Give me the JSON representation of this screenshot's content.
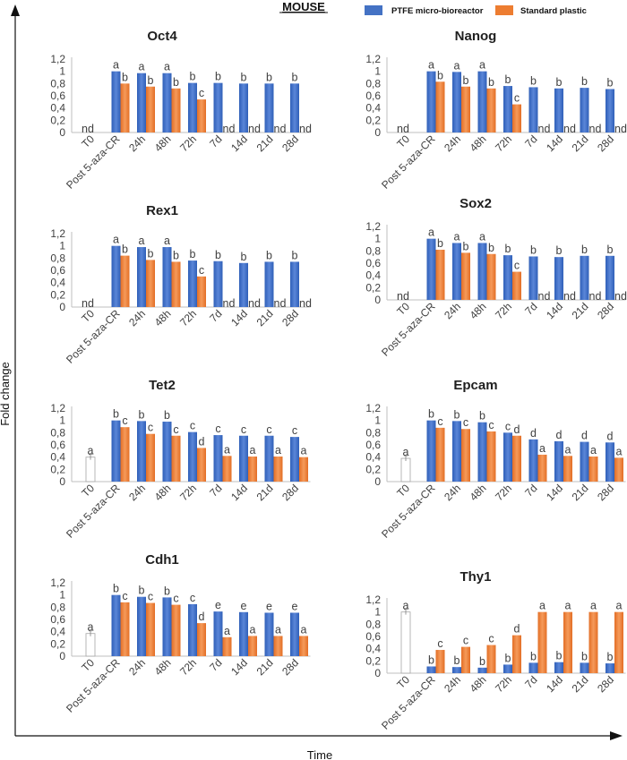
{
  "figure": {
    "title": "MOUSE",
    "xlabel": "Time",
    "ylabel": "Fold change",
    "legend": [
      {
        "name": "PTFE micro-bioreactor",
        "color": "#4472c4"
      },
      {
        "name": "Standard plastic",
        "color": "#ed7d31"
      }
    ]
  },
  "chart_data": [
    {
      "type": "bar",
      "title": "Oct4",
      "categories": [
        "T0",
        "Post 5-aza-CR",
        "24h",
        "48h",
        "72h",
        "7d",
        "14d",
        "21d",
        "28d"
      ],
      "yticks": [
        "0",
        "0,2",
        "0,4",
        "0,6",
        "0,8",
        "1",
        "1,2"
      ],
      "ylim": [
        0,
        1.2
      ],
      "series": [
        {
          "name": "PTFE micro-bioreactor",
          "values": [
            null,
            1.0,
            0.97,
            0.97,
            0.81,
            0.81,
            0.8,
            0.8,
            0.8
          ],
          "labels": [
            "nd",
            "a",
            "a",
            "a",
            "b",
            "b",
            "b",
            "b",
            "b"
          ]
        },
        {
          "name": "Standard plastic",
          "values": [
            null,
            0.8,
            0.75,
            0.72,
            0.54,
            null,
            null,
            null,
            null
          ],
          "labels": [
            "",
            "b",
            "b",
            "b",
            "c",
            "nd",
            "nd",
            "nd",
            "nd"
          ]
        }
      ]
    },
    {
      "type": "bar",
      "title": "Nanog",
      "categories": [
        "T0",
        "Post 5-aza-CR",
        "24h",
        "48h",
        "72h",
        "7d",
        "14d",
        "21d",
        "28d"
      ],
      "yticks": [
        "0",
        "0,2",
        "0,4",
        "0,6",
        "0,8",
        "1",
        "1,2"
      ],
      "ylim": [
        0,
        1.2
      ],
      "series": [
        {
          "name": "PTFE micro-bioreactor",
          "values": [
            null,
            1.0,
            0.99,
            1.0,
            0.76,
            0.74,
            0.72,
            0.73,
            0.71
          ],
          "labels": [
            "nd",
            "a",
            "a",
            "a",
            "b",
            "b",
            "b",
            "b",
            "b"
          ]
        },
        {
          "name": "Standard plastic",
          "values": [
            null,
            0.83,
            0.75,
            0.72,
            0.46,
            null,
            null,
            null,
            null
          ],
          "labels": [
            "",
            "b",
            "b",
            "b",
            "c",
            "nd",
            "nd",
            "nd",
            "nd"
          ]
        }
      ]
    },
    {
      "type": "bar",
      "title": "Rex1",
      "categories": [
        "T0",
        "Post 5-aza-CR",
        "24h",
        "48h",
        "72h",
        "7d",
        "14d",
        "21d",
        "28d"
      ],
      "yticks": [
        "0",
        "0,2",
        "0,4",
        "0,6",
        "0,8",
        "1",
        "1,2"
      ],
      "ylim": [
        0,
        1.2
      ],
      "series": [
        {
          "name": "PTFE micro-bioreactor",
          "values": [
            null,
            1.0,
            0.98,
            0.98,
            0.76,
            0.75,
            0.72,
            0.74,
            0.74
          ],
          "labels": [
            "nd",
            "a",
            "a",
            "a",
            "b",
            "b",
            "b",
            "b",
            "b"
          ]
        },
        {
          "name": "Standard plastic",
          "values": [
            null,
            0.84,
            0.77,
            0.74,
            0.5,
            null,
            null,
            null,
            null
          ],
          "labels": [
            "",
            "b",
            "b",
            "b",
            "c",
            "nd",
            "nd",
            "nd",
            "nd"
          ]
        }
      ]
    },
    {
      "type": "bar",
      "title": "Sox2",
      "categories": [
        "T0",
        "Post 5-aza-CR",
        "24h",
        "48h",
        "72h",
        "7d",
        "14d",
        "21d",
        "28d"
      ],
      "yticks": [
        "0",
        "0,2",
        "0,4",
        "0,6",
        "0,8",
        "1",
        "1,2"
      ],
      "ylim": [
        0,
        1.2
      ],
      "series": [
        {
          "name": "PTFE micro-bioreactor",
          "values": [
            null,
            1.0,
            0.93,
            0.93,
            0.73,
            0.71,
            0.7,
            0.72,
            0.72
          ],
          "labels": [
            "nd",
            "a",
            "a",
            "a",
            "b",
            "b",
            "b",
            "b",
            "b"
          ]
        },
        {
          "name": "Standard plastic",
          "values": [
            null,
            0.82,
            0.77,
            0.75,
            0.46,
            null,
            null,
            null,
            null
          ],
          "labels": [
            "",
            "b",
            "b",
            "b",
            "c",
            "nd",
            "nd",
            "nd",
            "nd"
          ]
        }
      ]
    },
    {
      "type": "bar",
      "title": "Tet2",
      "categories": [
        "T0",
        "Post 5-aza-CR",
        "24h",
        "48h",
        "72h",
        "7d",
        "14d",
        "21d",
        "28d"
      ],
      "yticks": [
        "0",
        "0,2",
        "0,4",
        "0,6",
        "0,8",
        "1",
        "1,2"
      ],
      "ylim": [
        0,
        1.2
      ],
      "series": [
        {
          "name": "PTFE micro-bioreactor",
          "values": [
            0.4,
            1.0,
            0.99,
            0.98,
            0.81,
            0.76,
            0.75,
            0.75,
            0.73
          ],
          "labels": [
            "a",
            "b",
            "b",
            "b",
            "c",
            "c",
            "c",
            "c",
            "c"
          ]
        },
        {
          "name": "Standard plastic",
          "values": [
            null,
            0.89,
            0.78,
            0.75,
            0.55,
            0.42,
            0.41,
            0.41,
            0.4
          ],
          "labels": [
            "",
            "c",
            "c",
            "c",
            "d",
            "a",
            "a",
            "a",
            "a"
          ]
        }
      ]
    },
    {
      "type": "bar",
      "title": "Epcam",
      "categories": [
        "T0",
        "Post 5-aza-CR",
        "24h",
        "48h",
        "72h",
        "7d",
        "14d",
        "21d",
        "28d"
      ],
      "yticks": [
        "0",
        "0,2",
        "0,4",
        "0,6",
        "0,8",
        "1",
        "1,2"
      ],
      "ylim": [
        0,
        1.2
      ],
      "series": [
        {
          "name": "PTFE micro-bioreactor",
          "values": [
            0.38,
            1.0,
            0.99,
            0.97,
            0.8,
            0.69,
            0.66,
            0.65,
            0.64
          ],
          "labels": [
            "a",
            "b",
            "b",
            "b",
            "c",
            "d",
            "d",
            "d",
            "d"
          ]
        },
        {
          "name": "Standard plastic",
          "values": [
            null,
            0.88,
            0.86,
            0.82,
            0.75,
            0.44,
            0.42,
            0.41,
            0.39
          ],
          "labels": [
            "",
            "c",
            "c",
            "c",
            "d",
            "a",
            "a",
            "a",
            "a"
          ]
        }
      ]
    },
    {
      "type": "bar",
      "title": "Cdh1",
      "categories": [
        "T0",
        "Post 5-aza-CR",
        "24h",
        "48h",
        "72h",
        "7d",
        "14d",
        "21d",
        "28d"
      ],
      "yticks": [
        "0",
        "0,2",
        "0,4",
        "0,6",
        "0,8",
        "1",
        "1,2"
      ],
      "ylim": [
        0,
        1.2
      ],
      "series": [
        {
          "name": "PTFE micro-bioreactor",
          "values": [
            0.37,
            1.0,
            0.97,
            0.96,
            0.85,
            0.73,
            0.72,
            0.71,
            0.71
          ],
          "labels": [
            "a",
            "b",
            "b",
            "b",
            "c",
            "e",
            "e",
            "e",
            "e"
          ]
        },
        {
          "name": "Standard plastic",
          "values": [
            null,
            0.88,
            0.87,
            0.84,
            0.54,
            0.31,
            0.33,
            0.33,
            0.33
          ],
          "labels": [
            "",
            "c",
            "c",
            "c",
            "d",
            "a",
            "a",
            "a",
            "a"
          ]
        }
      ]
    },
    {
      "type": "bar",
      "title": "Thy1",
      "categories": [
        "T0",
        "Post 5-aza-CR",
        "24h",
        "48h",
        "72h",
        "7d",
        "14d",
        "21d",
        "28d"
      ],
      "yticks": [
        "0",
        "0,2",
        "0,4",
        "0,6",
        "0,8",
        "1",
        "1,2"
      ],
      "ylim": [
        0,
        1.2
      ],
      "series": [
        {
          "name": "PTFE micro-bioreactor",
          "values": [
            1.0,
            0.11,
            0.1,
            0.09,
            0.14,
            0.17,
            0.18,
            0.17,
            0.16
          ],
          "labels": [
            "a",
            "b",
            "b",
            "b",
            "b",
            "b",
            "b",
            "b",
            "b"
          ]
        },
        {
          "name": "Standard plastic",
          "values": [
            null,
            0.38,
            0.43,
            0.46,
            0.62,
            1.0,
            1.0,
            1.0,
            1.0
          ],
          "labels": [
            "",
            "c",
            "c",
            "c",
            "d",
            "a",
            "a",
            "a",
            "a"
          ]
        }
      ]
    }
  ]
}
